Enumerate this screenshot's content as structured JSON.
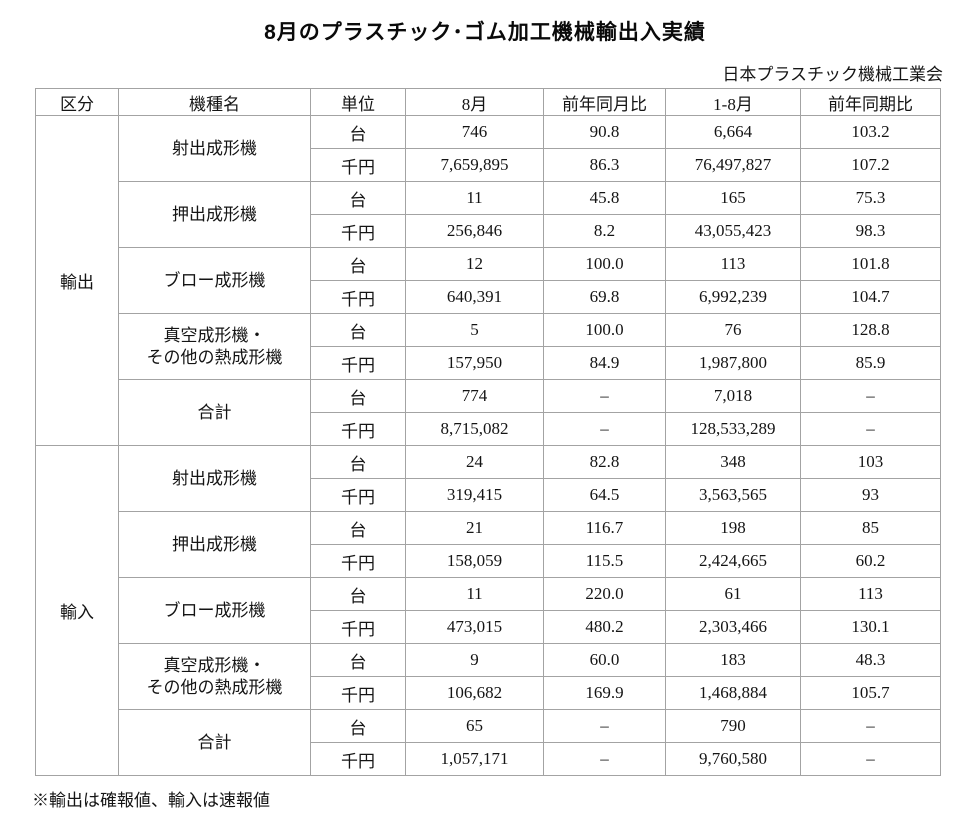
{
  "title": "8月のプラスチック･ゴム加工機械輸出入実績",
  "subtitle": "日本プラスチック機械工業会",
  "footnote": "※輸出は確報値、輸入は速報値",
  "table": {
    "headers": [
      "区分",
      "機種名",
      "単位",
      "8月",
      "前年同月比",
      "1-8月",
      "前年同期比"
    ],
    "sections": [
      {
        "label": "輸出",
        "machines": [
          {
            "name": "射出成形機",
            "rows": [
              [
                "台",
                "746",
                "90.8",
                "6,664",
                "103.2"
              ],
              [
                "千円",
                "7,659,895",
                "86.3",
                "76,497,827",
                "107.2"
              ]
            ]
          },
          {
            "name": "押出成形機",
            "rows": [
              [
                "台",
                "11",
                "45.8",
                "165",
                "75.3"
              ],
              [
                "千円",
                "256,846",
                "8.2",
                "43,055,423",
                "98.3"
              ]
            ]
          },
          {
            "name": "ブロー成形機",
            "rows": [
              [
                "台",
                "12",
                "100.0",
                "113",
                "101.8"
              ],
              [
                "千円",
                "640,391",
                "69.8",
                "6,992,239",
                "104.7"
              ]
            ]
          },
          {
            "name": "真空成形機・\nその他の熱成形機",
            "rows": [
              [
                "台",
                "5",
                "100.0",
                "76",
                "128.8"
              ],
              [
                "千円",
                "157,950",
                "84.9",
                "1,987,800",
                "85.9"
              ]
            ]
          },
          {
            "name": "合計",
            "rows": [
              [
                "台",
                "774",
                "–",
                "7,018",
                "–"
              ],
              [
                "千円",
                "8,715,082",
                "–",
                "128,533,289",
                "–"
              ]
            ]
          }
        ]
      },
      {
        "label": "輸入",
        "machines": [
          {
            "name": "射出成形機",
            "rows": [
              [
                "台",
                "24",
                "82.8",
                "348",
                "103"
              ],
              [
                "千円",
                "319,415",
                "64.5",
                "3,563,565",
                "93"
              ]
            ]
          },
          {
            "name": "押出成形機",
            "rows": [
              [
                "台",
                "21",
                "116.7",
                "198",
                "85"
              ],
              [
                "千円",
                "158,059",
                "115.5",
                "2,424,665",
                "60.2"
              ]
            ]
          },
          {
            "name": "ブロー成形機",
            "rows": [
              [
                "台",
                "11",
                "220.0",
                "61",
                "113"
              ],
              [
                "千円",
                "473,015",
                "480.2",
                "2,303,466",
                "130.1"
              ]
            ]
          },
          {
            "name": "真空成形機・\nその他の熱成形機",
            "rows": [
              [
                "台",
                "9",
                "60.0",
                "183",
                "48.3"
              ],
              [
                "千円",
                "106,682",
                "169.9",
                "1,468,884",
                "105.7"
              ]
            ]
          },
          {
            "name": "合計",
            "rows": [
              [
                "台",
                "65",
                "–",
                "790",
                "–"
              ],
              [
                "千円",
                "1,057,171",
                "–",
                "9,760,580",
                "–"
              ]
            ]
          }
        ]
      }
    ]
  }
}
